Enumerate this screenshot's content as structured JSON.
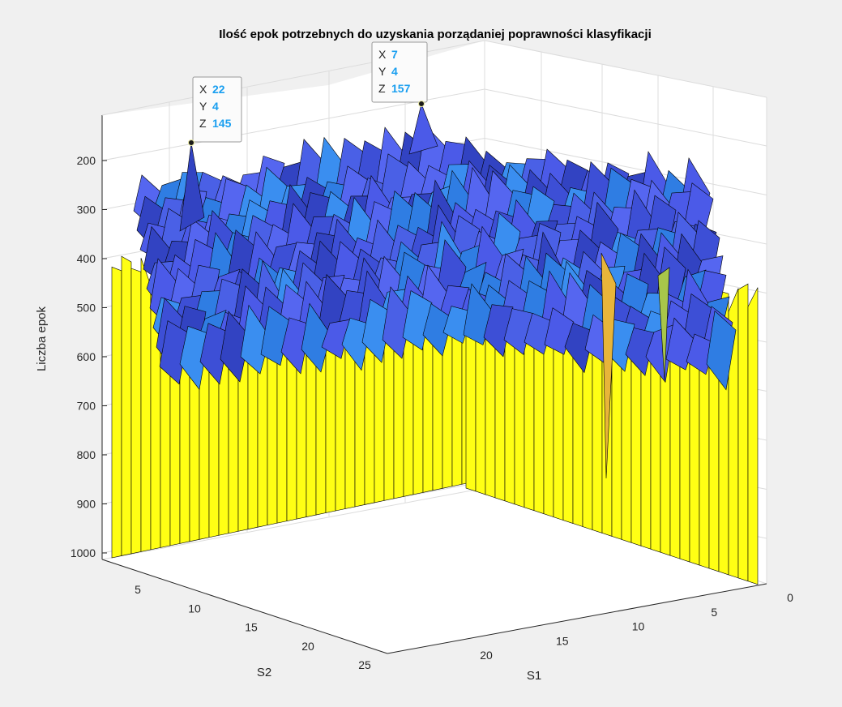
{
  "chart_data": {
    "type": "surface",
    "title": "Ilość epok potrzebnych do uzyskania porządaniej poprawności klasyfikacji",
    "xlabel": "S1",
    "ylabel": "S2",
    "zlabel": "Liczba epok",
    "xlim": [
      0,
      25
    ],
    "ylim": [
      0,
      25
    ],
    "zlim": [
      100,
      1000
    ],
    "z_direction": "reverse",
    "x_ticks": [
      "0",
      "5",
      "10",
      "15",
      "20"
    ],
    "y_ticks": [
      "5",
      "10",
      "15",
      "20",
      "25"
    ],
    "z_ticks": [
      "200",
      "300",
      "400",
      "500",
      "600",
      "700",
      "800",
      "900",
      "1000"
    ],
    "grid": true,
    "colormap": "parula",
    "edge_color": "#000000",
    "data_tips": [
      {
        "x_key": "X",
        "x": "7",
        "y_key": "Y",
        "y": "4",
        "z_key": "Z",
        "z": "157"
      },
      {
        "x_key": "X",
        "x": "22",
        "y_key": "Y",
        "y": "4",
        "z_key": "Z",
        "z": "145"
      }
    ],
    "colors": {
      "plot_background": "#ffffff",
      "figure_background": "#f0f0f0",
      "grid": "#dcdcdc",
      "axis": "#262626",
      "wall_fill": "#ffff14",
      "top_fill": "#4b5ae8",
      "datatip_value": "#1a9ff0"
    }
  }
}
